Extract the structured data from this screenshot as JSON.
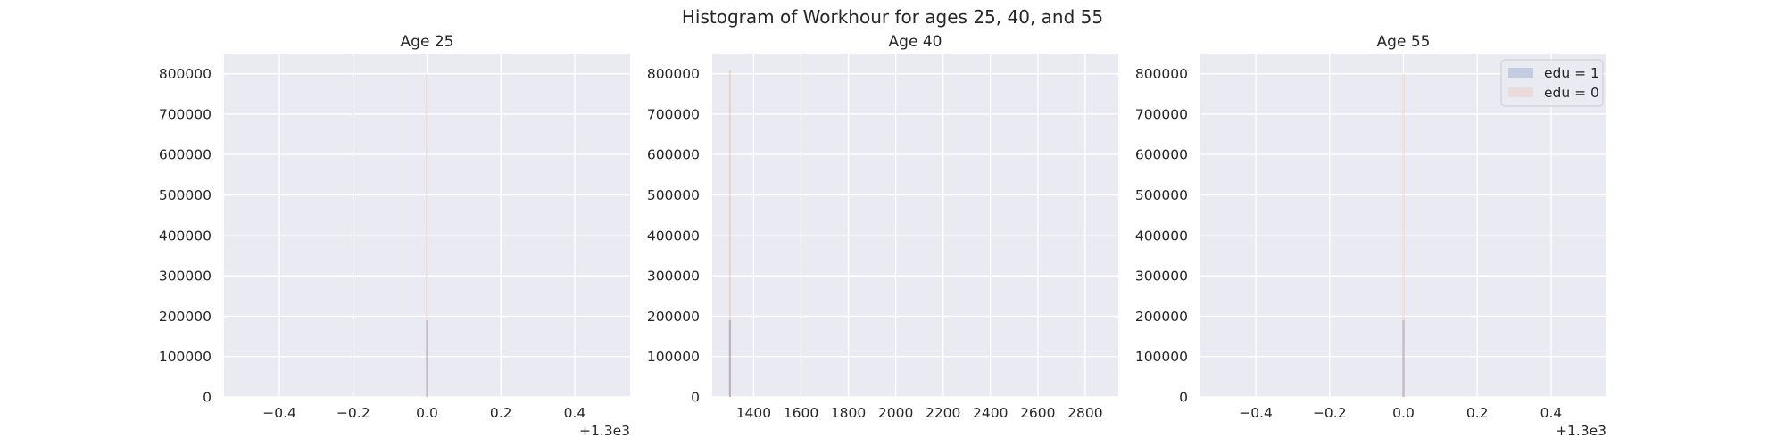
{
  "suptitle": "Histogram of Workhour for ages 25, 40, and 55",
  "colors": {
    "edu1": "#4c72b0",
    "edu0": "#dd8452",
    "panel_bg": "#eaeaf2",
    "grid": "#ffffff"
  },
  "legend": {
    "placement": "top-right",
    "entries": [
      {
        "label": "edu = 1",
        "color": "#4c72b0"
      },
      {
        "label": "edu = 0",
        "color": "#dd8452"
      }
    ]
  },
  "chart_data": [
    {
      "type": "bar",
      "title": "Age 25",
      "xlabel": "",
      "ylabel": "",
      "xlim": [
        -0.55,
        0.55
      ],
      "ylim": [
        0,
        850000
      ],
      "x_offset_label": "+1.3e3",
      "xticks": [
        -0.4,
        -0.2,
        0.0,
        0.2,
        0.4
      ],
      "xtick_labels": [
        "−0.4",
        "−0.2",
        "0.0",
        "0.2",
        "0.4"
      ],
      "yticks": [
        0,
        100000,
        200000,
        300000,
        400000,
        500000,
        600000,
        700000,
        800000
      ],
      "ytick_labels": [
        "0",
        "100000",
        "200000",
        "300000",
        "400000",
        "500000",
        "600000",
        "700000",
        "800000"
      ],
      "grid": true,
      "series": [
        {
          "name": "edu = 1",
          "x": [
            0.0
          ],
          "values": [
            190000
          ]
        },
        {
          "name": "edu = 0",
          "x": [
            0.0
          ],
          "values": [
            800000
          ]
        }
      ]
    },
    {
      "type": "bar",
      "title": "Age 40",
      "xlabel": "",
      "ylabel": "",
      "xlim": [
        1225,
        2940
      ],
      "ylim": [
        0,
        850000
      ],
      "x_offset_label": "",
      "xticks": [
        1400,
        1600,
        1800,
        2000,
        2200,
        2400,
        2600,
        2800
      ],
      "xtick_labels": [
        "1400",
        "1600",
        "1800",
        "2000",
        "2200",
        "2400",
        "2600",
        "2800"
      ],
      "yticks": [
        0,
        100000,
        200000,
        300000,
        400000,
        500000,
        600000,
        700000,
        800000
      ],
      "ytick_labels": [
        "0",
        "100000",
        "200000",
        "300000",
        "400000",
        "500000",
        "600000",
        "700000",
        "800000"
      ],
      "grid": true,
      "series": [
        {
          "name": "edu = 1",
          "x": [
            1300
          ],
          "values": [
            190000
          ]
        },
        {
          "name": "edu = 0",
          "x": [
            1300
          ],
          "values": [
            810000
          ]
        }
      ]
    },
    {
      "type": "bar",
      "title": "Age 55",
      "xlabel": "",
      "ylabel": "",
      "xlim": [
        -0.55,
        0.55
      ],
      "ylim": [
        0,
        850000
      ],
      "x_offset_label": "+1.3e3",
      "xticks": [
        -0.4,
        -0.2,
        0.0,
        0.2,
        0.4
      ],
      "xtick_labels": [
        "−0.4",
        "−0.2",
        "0.0",
        "0.2",
        "0.4"
      ],
      "yticks": [
        0,
        100000,
        200000,
        300000,
        400000,
        500000,
        600000,
        700000,
        800000
      ],
      "ytick_labels": [
        "0",
        "100000",
        "200000",
        "300000",
        "400000",
        "500000",
        "600000",
        "700000",
        "800000"
      ],
      "grid": true,
      "series": [
        {
          "name": "edu = 1",
          "x": [
            0.0
          ],
          "values": [
            190000
          ]
        },
        {
          "name": "edu = 0",
          "x": [
            0.0
          ],
          "values": [
            800000
          ]
        }
      ]
    }
  ]
}
